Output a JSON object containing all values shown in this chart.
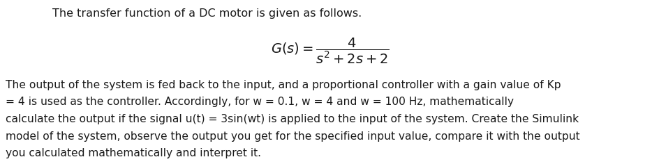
{
  "line1": "The transfer function of a DC motor is given as follows.",
  "tf_full": "$G(s) = \\dfrac{4}{s^2 + 2s + 2}$",
  "paragraph_lines": [
    "The output of the system is fed back to the input, and a proportional controller with a gain value of Kp",
    "= 4 is used as the controller. Accordingly, for w = 0.1, w = 4 and w = 100 Hz, mathematically",
    "calculate the output if the signal u(t) = 3sin(wt) is applied to the input of the system. Create the Simulink",
    "model of the system, observe the output you get for the specified input value, compare it with the output",
    "you calculated mathematically and interpret it."
  ],
  "bg_color": "#ffffff",
  "text_color": "#1a1a1a",
  "font_size_line1": 11.5,
  "font_size_para": 11.2,
  "font_size_tf": 14,
  "fig_width": 9.45,
  "fig_height": 2.36,
  "dpi": 100
}
